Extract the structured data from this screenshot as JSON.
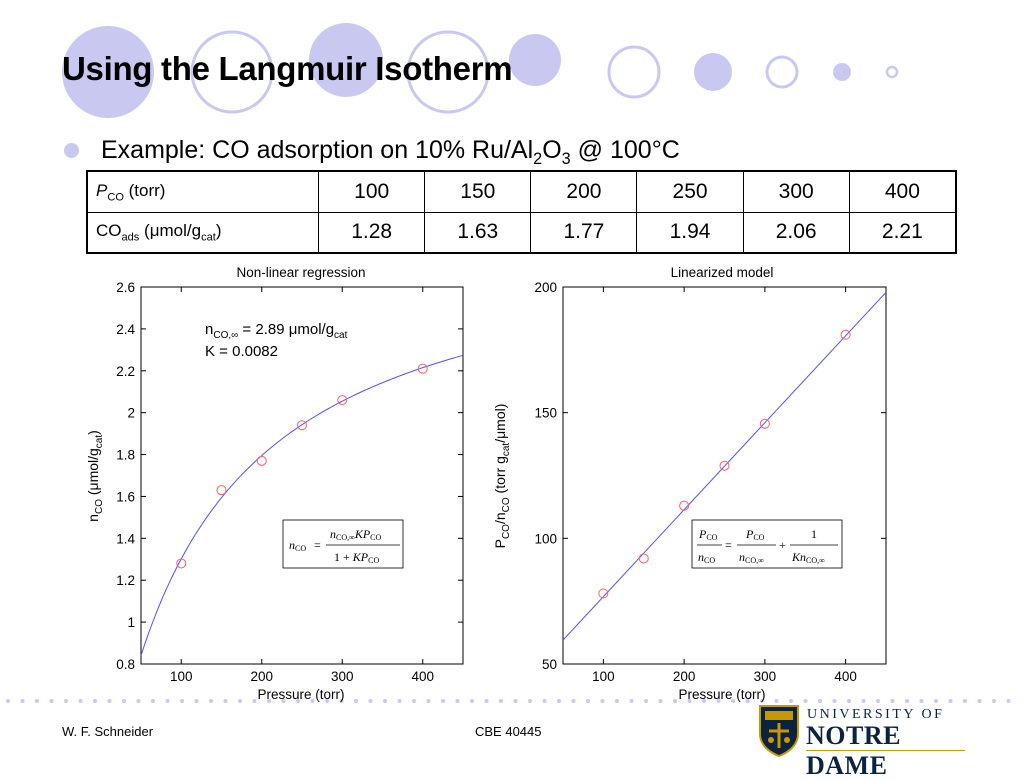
{
  "title": "Using the Langmuir Isotherm",
  "bullet": {
    "prefix": "Example: CO adsorption on 10% Ru/Al",
    "sub1": "2",
    "mid": "O",
    "sub2": "3",
    "suffix": " @ 100°C"
  },
  "table": {
    "row1": {
      "label_main": "P",
      "label_sub": "CO",
      "label_rest": " (torr)",
      "values": [
        "100",
        "150",
        "200",
        "250",
        "300",
        "400"
      ]
    },
    "row2": {
      "label_main": "CO",
      "label_sub": "ads",
      "label_rest": " (μmol/g",
      "label_sub2": "cat",
      "label_end": ")",
      "values": [
        "1.28",
        "1.63",
        "1.77",
        "1.94",
        "2.06",
        "2.21"
      ]
    }
  },
  "footer": {
    "author": "W. F. Schneider",
    "course": "CBE 40445"
  },
  "logo": {
    "line1": "UNIVERSITY OF",
    "line2": "NOTRE DAME"
  },
  "colors": {
    "curve": "#5050ff",
    "marker": "#ff6060",
    "bullet": "#c8c8f0",
    "deco": "#c8c8f0"
  },
  "chart_data": [
    {
      "type": "scatter",
      "title": "Non-linear regression",
      "xlabel": "Pressure (torr)",
      "ylabel": {
        "main": "n",
        "sub": "CO",
        "mid": " (μmol/g",
        "sub2": "cat",
        "end": ")"
      },
      "xlim": [
        50,
        450
      ],
      "ylim": [
        0.8,
        2.6
      ],
      "xticks": [
        "100",
        "200",
        "300",
        "400"
      ],
      "yticks": [
        "0.8",
        "1",
        "1.2",
        "1.4",
        "1.6",
        "1.8",
        "2",
        "2.2",
        "2.4",
        "2.6"
      ],
      "series": [
        {
          "kind": "markers",
          "x": [
            100,
            150,
            200,
            250,
            300,
            400
          ],
          "y": [
            1.28,
            1.63,
            1.77,
            1.94,
            2.06,
            2.21
          ]
        },
        {
          "kind": "fit",
          "n_inf": 2.89,
          "K": 0.0082
        }
      ],
      "annotation": {
        "line1_main": "n",
        "line1_sub": "CO,∞",
        "line1_rest": " = 2.89 μmol/g",
        "line1_sub2": "cat",
        "line2": "K = 0.0082"
      },
      "equation": {
        "lhs": "n",
        "lhs_sub": "CO",
        "num_a": "n",
        "num_a_sub": "CO,∞",
        "num_b": "KP",
        "num_b_sub": "CO",
        "den_a": "1 + ",
        "den_b": "KP",
        "den_b_sub": "CO"
      }
    },
    {
      "type": "scatter",
      "title": "Linearized model",
      "xlabel": "Pressure (torr)",
      "ylabel": {
        "main": "P",
        "sub": "CO",
        "mid": "/n",
        "sub2": "CO",
        "end": " (torr g",
        "sub3": "cat",
        "end2": "/μmol)"
      },
      "xlim": [
        50,
        450
      ],
      "ylim": [
        50,
        200
      ],
      "xticks": [
        "100",
        "200",
        "300",
        "400"
      ],
      "yticks": [
        "50",
        "100",
        "150",
        "200"
      ],
      "series": [
        {
          "kind": "markers",
          "x": [
            100,
            150,
            200,
            250,
            300,
            400
          ],
          "y": [
            78.1,
            92.0,
            113.0,
            128.9,
            145.6,
            181.0
          ]
        },
        {
          "kind": "fit",
          "slope": 0.346,
          "intercept": 42.2
        }
      ],
      "equation": {
        "l_num": "P",
        "l_num_sub": "CO",
        "l_den": "n",
        "l_den_sub": "CO",
        "m_num": "P",
        "m_num_sub": "CO",
        "m_den": "n",
        "m_den_sub": "CO,∞",
        "plus": "+",
        "r_num": "1",
        "r_den": "Kn",
        "r_den_sub": "CO,∞"
      }
    }
  ]
}
